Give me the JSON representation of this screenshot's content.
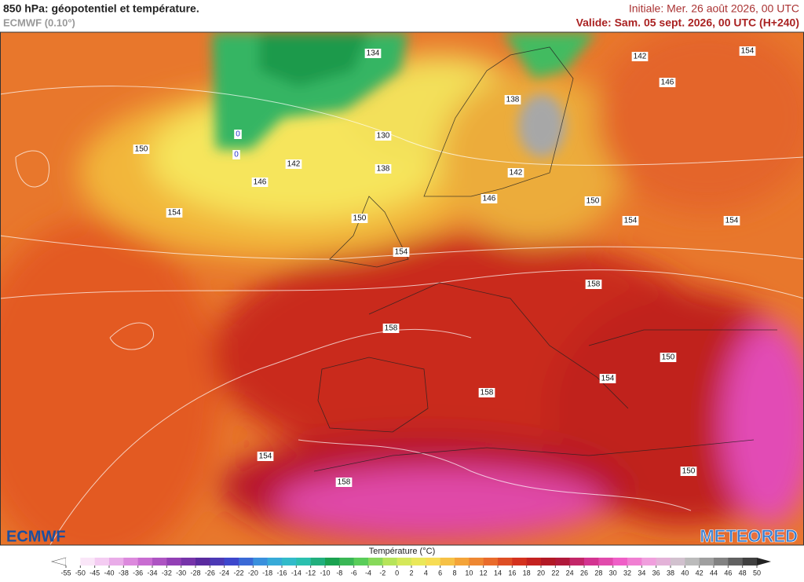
{
  "header": {
    "title": "850 hPa: géopotentiel et température.",
    "model": "ECMWF (0.10°)",
    "initial": "Initiale: Mer. 26 août 2026, 00 UTC",
    "valid": "Valide: Sam. 05 sept. 2026, 00 UTC (H+240)"
  },
  "map": {
    "contour_labels": [
      "134",
      "142",
      "154",
      "146",
      "138",
      "130",
      "150",
      "142",
      "138",
      "146",
      "142",
      "146",
      "150",
      "154",
      "150",
      "154",
      "154",
      "154",
      "158",
      "158",
      "150",
      "154",
      "158",
      "154",
      "158",
      "150"
    ],
    "temperature_labels": [
      "0",
      "0"
    ]
  },
  "logos": {
    "left": "ECMWF",
    "right": "METEORED"
  },
  "colorbar": {
    "title": "Température (°C)",
    "ticks": [
      -55,
      -50,
      -45,
      -40,
      -38,
      -36,
      -34,
      -32,
      -30,
      -28,
      -26,
      -24,
      -22,
      -20,
      -18,
      -16,
      -14,
      -12,
      -10,
      -8,
      -6,
      -4,
      -2,
      0,
      2,
      4,
      6,
      8,
      10,
      12,
      14,
      16,
      18,
      20,
      22,
      24,
      26,
      28,
      30,
      32,
      34,
      36,
      38,
      40,
      42,
      44,
      46,
      48,
      50
    ]
  }
}
